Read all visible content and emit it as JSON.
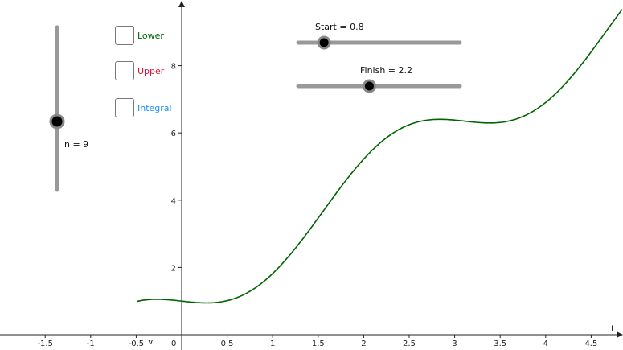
{
  "axes": {
    "x_name": "t",
    "y_name": "v",
    "origin_label": "0",
    "x_ticks": [
      "-1.5",
      "-1",
      "-0.5",
      "0.5",
      "1",
      "1.5",
      "2",
      "2.5",
      "3",
      "3.5",
      "4",
      "4.5"
    ],
    "y_ticks": [
      "2",
      "4",
      "6",
      "8"
    ]
  },
  "checkboxes": [
    {
      "key": "lower",
      "label": "Lower",
      "color": "#006400",
      "checked": false
    },
    {
      "key": "upper",
      "label": "Upper",
      "color": "#DC143C",
      "checked": false
    },
    {
      "key": "integral",
      "label": "Integral",
      "color": "#1E90FF",
      "checked": false
    }
  ],
  "sliders": {
    "n": {
      "label": "n = 9",
      "value": 9,
      "min": 1,
      "max": 20
    },
    "start": {
      "label": "Start = 0.8",
      "value": 0.8,
      "min": 0,
      "max": 5
    },
    "finish": {
      "label": "Finish = 2.2",
      "value": 2.2,
      "min": 0,
      "max": 5
    }
  },
  "curve": {
    "color": "#006400"
  }
}
